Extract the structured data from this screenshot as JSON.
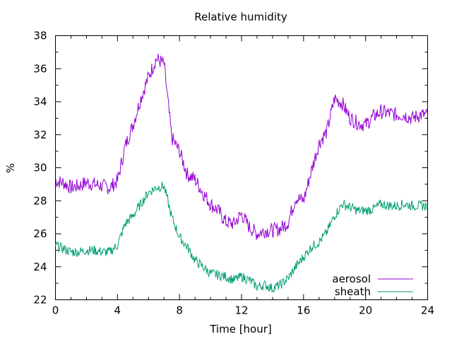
{
  "chart_data": {
    "type": "line",
    "title": "Relative humidity",
    "xlabel": "Time [hour]",
    "ylabel": "%",
    "xlim": [
      0,
      24
    ],
    "ylim": [
      22,
      38
    ],
    "xticks": [
      0,
      4,
      8,
      12,
      16,
      20,
      24
    ],
    "yticks": [
      22,
      24,
      26,
      28,
      30,
      32,
      34,
      36,
      38
    ],
    "grid": false,
    "legend_position": "bottom-right",
    "series": [
      {
        "name": "aerosol",
        "color": "#9400d3",
        "x": [
          0,
          0.5,
          1,
          1.5,
          2,
          2.5,
          3,
          3.5,
          4,
          4.5,
          5,
          5.5,
          6,
          6.5,
          7,
          7.5,
          8,
          8.5,
          9,
          9.5,
          10,
          10.5,
          11,
          11.5,
          12,
          12.5,
          13,
          13.5,
          14,
          14.5,
          15,
          15.5,
          16,
          16.5,
          17,
          17.5,
          18,
          18.5,
          19,
          19.5,
          20,
          20.5,
          21,
          21.5,
          22,
          22.5,
          23,
          23.5,
          24
        ],
        "y": [
          29.2,
          29.1,
          28.8,
          28.9,
          29.1,
          29.0,
          28.9,
          28.8,
          29.2,
          31.3,
          32.6,
          34.2,
          35.5,
          36.6,
          36.3,
          31.8,
          31.0,
          29.6,
          29.3,
          28.5,
          27.8,
          27.4,
          26.7,
          26.6,
          27.2,
          26.4,
          26.0,
          26.2,
          26.2,
          26.3,
          26.7,
          28.2,
          28.0,
          29.8,
          31.5,
          32.2,
          34.2,
          33.9,
          33.0,
          32.7,
          32.6,
          33.1,
          33.4,
          33.3,
          33.2,
          33.2,
          33.0,
          33.2,
          33.2
        ]
      },
      {
        "name": "sheath",
        "color": "#009e73",
        "x": [
          0,
          0.5,
          1,
          1.5,
          2,
          2.5,
          3,
          3.5,
          4,
          4.5,
          5,
          5.5,
          6,
          6.5,
          7,
          7.5,
          8,
          8.5,
          9,
          9.5,
          10,
          10.5,
          11,
          11.5,
          12,
          12.5,
          13,
          13.5,
          14,
          14.5,
          15,
          15.5,
          16,
          16.5,
          17,
          17.5,
          18,
          18.5,
          19,
          19.5,
          20,
          20.5,
          21,
          21.5,
          22,
          22.5,
          23,
          23.5,
          24
        ],
        "y": [
          25.3,
          25.1,
          24.9,
          24.9,
          25.0,
          25.0,
          24.9,
          24.9,
          25.3,
          26.6,
          27.1,
          27.8,
          28.5,
          28.8,
          28.9,
          27.0,
          25.8,
          25.2,
          24.4,
          24.0,
          23.6,
          23.5,
          23.4,
          23.2,
          23.4,
          23.2,
          22.8,
          22.9,
          22.7,
          22.9,
          23.3,
          24.0,
          24.6,
          25.2,
          25.5,
          26.1,
          27.1,
          27.8,
          27.6,
          27.4,
          27.4,
          27.5,
          27.8,
          27.7,
          27.7,
          27.8,
          27.7,
          27.7,
          27.7
        ]
      }
    ]
  }
}
